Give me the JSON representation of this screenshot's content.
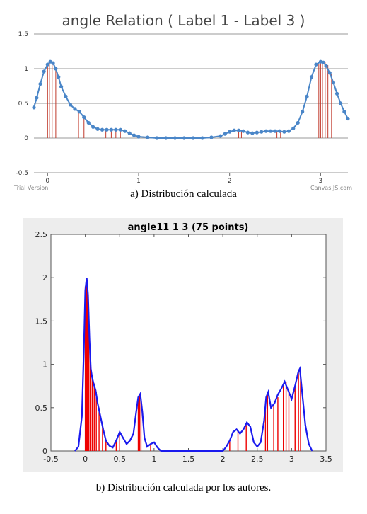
{
  "captions": {
    "a": "a) Distribución calculada",
    "b": "b) Distribución calculada por los autores."
  },
  "watermarks": {
    "left": "Trial Version",
    "right": "Canvas JS.com"
  },
  "chart_data": [
    {
      "type": "line",
      "title": "angle Relation ( Label 1 - Label 3 )",
      "xlim": [
        -0.15,
        3.3
      ],
      "ylim": [
        -0.5,
        1.5
      ],
      "y_ticks": [
        -0.5,
        0,
        0.5,
        1,
        1.5
      ],
      "y_tick_labels": [
        "-0.5",
        "0",
        "0.5",
        "1",
        "1.5"
      ],
      "x_ticks": [
        0,
        1,
        2,
        3
      ],
      "x_tick_labels": [
        "0",
        "1",
        "2",
        "3"
      ],
      "grid": "horizontal",
      "colors": {
        "line": "#4a86c8",
        "marker": "#4a86c8",
        "stems": "#c0392b",
        "grid": "#999999"
      },
      "series": [
        {
          "x": [
            -0.15,
            -0.12,
            -0.08,
            -0.04,
            0.0,
            0.03,
            0.06,
            0.09,
            0.12,
            0.15,
            0.2,
            0.25,
            0.3,
            0.35,
            0.4,
            0.45,
            0.5,
            0.55,
            0.6,
            0.65,
            0.7,
            0.75,
            0.8,
            0.85,
            0.9,
            0.95,
            1.0,
            1.1,
            1.2,
            1.3,
            1.4,
            1.5,
            1.6,
            1.7,
            1.8,
            1.9,
            1.95,
            2.0,
            2.05,
            2.1,
            2.15,
            2.2,
            2.25,
            2.3,
            2.35,
            2.4,
            2.45,
            2.5,
            2.55,
            2.6,
            2.65,
            2.7,
            2.75,
            2.8,
            2.85,
            2.9,
            2.95,
            3.0,
            3.03,
            3.06,
            3.1,
            3.14,
            3.18,
            3.22,
            3.26,
            3.3
          ],
          "y": [
            0.44,
            0.58,
            0.78,
            0.96,
            1.06,
            1.1,
            1.08,
            1.0,
            0.88,
            0.74,
            0.6,
            0.48,
            0.42,
            0.38,
            0.3,
            0.22,
            0.16,
            0.13,
            0.12,
            0.12,
            0.12,
            0.12,
            0.12,
            0.1,
            0.07,
            0.04,
            0.02,
            0.01,
            0.0,
            0.0,
            0.0,
            0.0,
            0.0,
            0.0,
            0.01,
            0.03,
            0.06,
            0.09,
            0.11,
            0.11,
            0.1,
            0.08,
            0.07,
            0.08,
            0.09,
            0.1,
            0.1,
            0.1,
            0.1,
            0.09,
            0.1,
            0.14,
            0.22,
            0.38,
            0.6,
            0.88,
            1.06,
            1.1,
            1.09,
            1.04,
            0.94,
            0.8,
            0.64,
            0.5,
            0.38,
            0.28
          ]
        }
      ],
      "stems": [
        {
          "x": 0.0,
          "h": 1.06
        },
        {
          "x": 0.02,
          "h": 1.09
        },
        {
          "x": 0.05,
          "h": 1.08
        },
        {
          "x": 0.09,
          "h": 1.0
        },
        {
          "x": 0.34,
          "h": 0.38
        },
        {
          "x": 0.4,
          "h": 0.3
        },
        {
          "x": 0.64,
          "h": 0.12
        },
        {
          "x": 0.7,
          "h": 0.12
        },
        {
          "x": 0.75,
          "h": 0.12
        },
        {
          "x": 0.8,
          "h": 0.12
        },
        {
          "x": 2.1,
          "h": 0.11
        },
        {
          "x": 2.13,
          "h": 0.11
        },
        {
          "x": 2.52,
          "h": 0.1
        },
        {
          "x": 2.56,
          "h": 0.1
        },
        {
          "x": 2.98,
          "h": 1.07
        },
        {
          "x": 3.0,
          "h": 1.1
        },
        {
          "x": 3.02,
          "h": 1.1
        },
        {
          "x": 3.05,
          "h": 1.09
        },
        {
          "x": 3.08,
          "h": 1.05
        },
        {
          "x": 3.12,
          "h": 0.92
        }
      ]
    },
    {
      "type": "line",
      "title": "angle11 1 3 (75 points)",
      "xlim": [
        -0.5,
        3.5
      ],
      "ylim": [
        0,
        2.5
      ],
      "x_ticks": [
        -0.5,
        0,
        0.5,
        1,
        1.5,
        2,
        2.5,
        3,
        3.5
      ],
      "x_tick_labels": [
        "-0.5",
        "0",
        "0.5",
        "1",
        "1.5",
        "2",
        "2.5",
        "3",
        "3.5"
      ],
      "y_ticks": [
        0,
        0.5,
        1,
        1.5,
        2,
        2.5
      ],
      "y_tick_labels": [
        "0",
        "0.5",
        "1",
        "1.5",
        "2",
        "2.5"
      ],
      "grid": "none",
      "colors": {
        "line": "#1a1aee",
        "stems": "#ee0000",
        "panel_bg": "#ededed",
        "axes_bg": "#ffffff"
      },
      "series": [
        {
          "x": [
            -0.15,
            -0.1,
            -0.05,
            -0.02,
            0.0,
            0.02,
            0.04,
            0.06,
            0.08,
            0.1,
            0.12,
            0.15,
            0.18,
            0.22,
            0.26,
            0.3,
            0.35,
            0.4,
            0.45,
            0.5,
            0.55,
            0.6,
            0.65,
            0.7,
            0.74,
            0.77,
            0.8,
            0.83,
            0.86,
            0.9,
            0.95,
            1.0,
            1.05,
            1.1,
            1.5,
            2.0,
            2.05,
            2.1,
            2.15,
            2.2,
            2.25,
            2.3,
            2.35,
            2.4,
            2.45,
            2.5,
            2.55,
            2.6,
            2.63,
            2.66,
            2.7,
            2.75,
            2.8,
            2.85,
            2.9,
            2.95,
            3.0,
            3.05,
            3.1,
            3.12,
            3.15,
            3.2,
            3.25,
            3.3
          ],
          "y": [
            0.0,
            0.05,
            0.4,
            1.2,
            1.85,
            2.0,
            1.8,
            1.3,
            0.95,
            0.85,
            0.78,
            0.7,
            0.55,
            0.4,
            0.25,
            0.12,
            0.06,
            0.04,
            0.12,
            0.22,
            0.15,
            0.08,
            0.12,
            0.2,
            0.45,
            0.62,
            0.66,
            0.45,
            0.15,
            0.05,
            0.08,
            0.1,
            0.04,
            0.0,
            0.0,
            0.0,
            0.05,
            0.12,
            0.22,
            0.25,
            0.2,
            0.25,
            0.33,
            0.28,
            0.1,
            0.05,
            0.1,
            0.35,
            0.62,
            0.68,
            0.5,
            0.55,
            0.65,
            0.72,
            0.8,
            0.7,
            0.6,
            0.75,
            0.92,
            0.95,
            0.7,
            0.3,
            0.08,
            0.0
          ]
        }
      ],
      "stems": [
        {
          "x": 0.0,
          "h": 1.9
        },
        {
          "x": 0.02,
          "h": 2.0
        },
        {
          "x": 0.03,
          "h": 1.95
        },
        {
          "x": 0.05,
          "h": 1.6
        },
        {
          "x": 0.07,
          "h": 1.2
        },
        {
          "x": 0.1,
          "h": 0.85
        },
        {
          "x": 0.13,
          "h": 0.78
        },
        {
          "x": 0.16,
          "h": 0.68
        },
        {
          "x": 0.2,
          "h": 0.5
        },
        {
          "x": 0.25,
          "h": 0.28
        },
        {
          "x": 0.3,
          "h": 0.12
        },
        {
          "x": 0.45,
          "h": 0.12
        },
        {
          "x": 0.5,
          "h": 0.22
        },
        {
          "x": 0.77,
          "h": 0.6
        },
        {
          "x": 0.79,
          "h": 0.66
        },
        {
          "x": 0.81,
          "h": 0.6
        },
        {
          "x": 0.95,
          "h": 0.08
        },
        {
          "x": 2.1,
          "h": 0.12
        },
        {
          "x": 2.22,
          "h": 0.24
        },
        {
          "x": 2.34,
          "h": 0.3
        },
        {
          "x": 2.62,
          "h": 0.55
        },
        {
          "x": 2.65,
          "h": 0.67
        },
        {
          "x": 2.74,
          "h": 0.52
        },
        {
          "x": 2.8,
          "h": 0.62
        },
        {
          "x": 2.88,
          "h": 0.75
        },
        {
          "x": 2.92,
          "h": 0.8
        },
        {
          "x": 2.96,
          "h": 0.7
        },
        {
          "x": 3.05,
          "h": 0.75
        },
        {
          "x": 3.1,
          "h": 0.92
        },
        {
          "x": 3.13,
          "h": 0.95
        }
      ]
    }
  ]
}
